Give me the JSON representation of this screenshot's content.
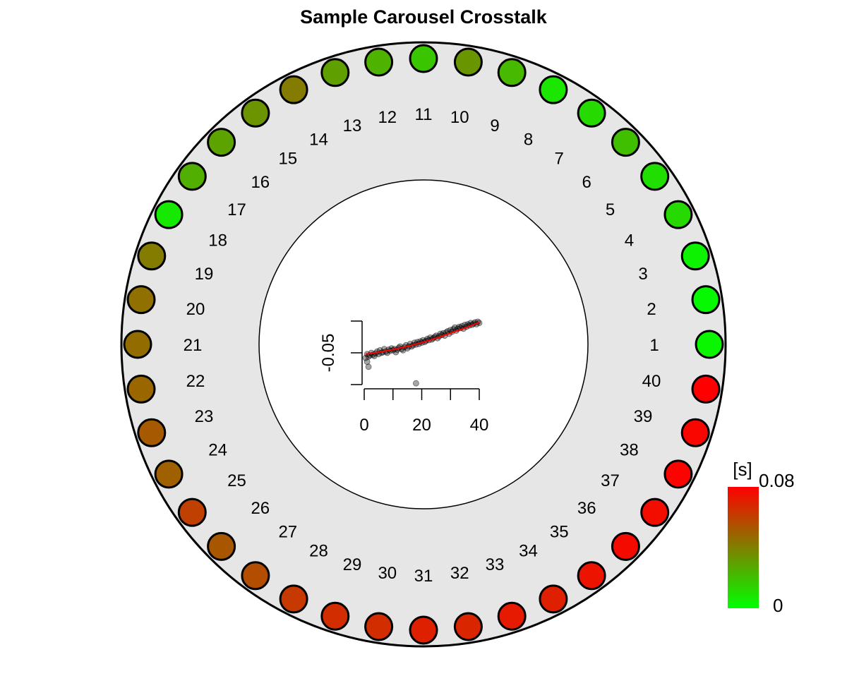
{
  "chart_data": {
    "type": "scatter",
    "title": "Sample Carousel Crosstalk",
    "carousel": {
      "positions": [
        1,
        2,
        3,
        4,
        5,
        6,
        7,
        8,
        9,
        10,
        11,
        12,
        13,
        14,
        15,
        16,
        17,
        18,
        19,
        20,
        21,
        22,
        23,
        24,
        25,
        26,
        27,
        28,
        29,
        30,
        31,
        32,
        33,
        34,
        35,
        36,
        37,
        38,
        39,
        40
      ],
      "values_s": [
        0.003,
        0.002,
        0.004,
        0.012,
        0.01,
        0.02,
        0.012,
        0.008,
        0.022,
        0.033,
        0.018,
        0.024,
        0.03,
        0.041,
        0.034,
        0.029,
        0.025,
        0.007,
        0.041,
        0.045,
        0.046,
        0.048,
        0.052,
        0.05,
        0.06,
        0.053,
        0.056,
        0.062,
        0.066,
        0.066,
        0.07,
        0.068,
        0.072,
        0.07,
        0.074,
        0.077,
        0.076,
        0.079,
        0.078,
        0.08
      ]
    },
    "colorbar": {
      "label": "[s]",
      "min": 0,
      "max": 0.08,
      "min_label": "0",
      "max_label": "0.08",
      "color_low": "#00ff00",
      "color_high": "#ff0000"
    },
    "inset": {
      "type": "scatter",
      "x_ticks": [
        0,
        10,
        20,
        30,
        40
      ],
      "x_tick_labels": [
        "0",
        "",
        "20",
        "",
        "40"
      ],
      "xlim": [
        0,
        40
      ],
      "y_ticks": [
        -0.1,
        -0.05,
        0.0
      ],
      "y_tick_labels": [
        "",
        "-0.05",
        ""
      ],
      "ylim": [
        -0.1,
        0.0
      ],
      "x": [
        0.5,
        1,
        1.5,
        2,
        2.5,
        3,
        3.5,
        4,
        4.5,
        5,
        5.5,
        6,
        6.5,
        7,
        7.5,
        8,
        8.5,
        9,
        9.5,
        10,
        10.5,
        11,
        11.5,
        12,
        12.5,
        13,
        13.5,
        14,
        14.5,
        15,
        15.5,
        16,
        16.5,
        17,
        17.5,
        18,
        18.5,
        19,
        19.5,
        20,
        20.5,
        21,
        21.5,
        22,
        22.5,
        23,
        23.5,
        24,
        24.5,
        25,
        25.5,
        26,
        26.5,
        27,
        27.5,
        28,
        28.5,
        29,
        29.5,
        30,
        30.5,
        31,
        31.5,
        32,
        32.5,
        33,
        33.5,
        34,
        34.5,
        35,
        35.5,
        36,
        36.5,
        37,
        37.5,
        38,
        38.5,
        39,
        39.5,
        40,
        1,
        1.5,
        18
      ],
      "y": [
        -0.058,
        -0.052,
        -0.056,
        -0.054,
        -0.05,
        -0.053,
        -0.055,
        -0.051,
        -0.048,
        -0.052,
        -0.046,
        -0.05,
        -0.049,
        -0.044,
        -0.048,
        -0.05,
        -0.045,
        -0.047,
        -0.043,
        -0.046,
        -0.044,
        -0.049,
        -0.045,
        -0.042,
        -0.04,
        -0.044,
        -0.046,
        -0.041,
        -0.038,
        -0.043,
        -0.04,
        -0.036,
        -0.04,
        -0.038,
        -0.034,
        -0.037,
        -0.033,
        -0.036,
        -0.032,
        -0.034,
        -0.03,
        -0.033,
        -0.031,
        -0.028,
        -0.03,
        -0.026,
        -0.029,
        -0.027,
        -0.025,
        -0.023,
        -0.027,
        -0.024,
        -0.02,
        -0.022,
        -0.019,
        -0.023,
        -0.018,
        -0.016,
        -0.02,
        -0.014,
        -0.017,
        -0.013,
        -0.01,
        -0.015,
        -0.012,
        -0.009,
        -0.011,
        -0.008,
        -0.012,
        -0.006,
        -0.009,
        -0.005,
        -0.007,
        -0.003,
        -0.006,
        -0.004,
        -0.002,
        -0.005,
        -0.001,
        -0.003,
        -0.064,
        -0.072,
        -0.098
      ],
      "fit_x": [
        0.5,
        5,
        10,
        15,
        20,
        25,
        30,
        35,
        40
      ],
      "fit_y": [
        -0.052,
        -0.049,
        -0.045,
        -0.04,
        -0.034,
        -0.027,
        -0.019,
        -0.011,
        -0.002
      ],
      "point_color": "#000000",
      "fit_color": "#ff0000"
    }
  }
}
